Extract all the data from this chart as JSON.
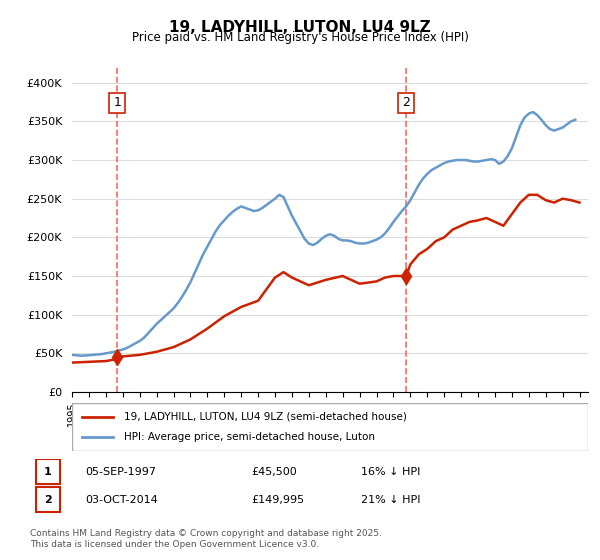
{
  "title": "19, LADYHILL, LUTON, LU4 9LZ",
  "subtitle": "Price paid vs. HM Land Registry's House Price Index (HPI)",
  "ylabel_ticks": [
    "£0",
    "£50K",
    "£100K",
    "£150K",
    "£200K",
    "£250K",
    "£300K",
    "£350K",
    "£400K"
  ],
  "ytick_values": [
    0,
    50000,
    100000,
    150000,
    200000,
    250000,
    300000,
    350000,
    400000
  ],
  "ylim": [
    0,
    420000
  ],
  "xlim_start": 1995.0,
  "xlim_end": 2025.5,
  "sale1_date": 1997.67,
  "sale1_price": 45500,
  "sale1_label": "1",
  "sale2_date": 2014.75,
  "sale2_price": 149995,
  "sale2_label": "2",
  "hpi_color": "#6699cc",
  "price_color": "#cc2200",
  "vline_color": "#ff6666",
  "background_color": "#ffffff",
  "grid_color": "#dddddd",
  "legend_entry1": "19, LADYHILL, LUTON, LU4 9LZ (semi-detached house)",
  "legend_entry2": "HPI: Average price, semi-detached house, Luton",
  "table_row1": [
    "1",
    "05-SEP-1997",
    "£45,500",
    "16% ↓ HPI"
  ],
  "table_row2": [
    "2",
    "03-OCT-2014",
    "£149,995",
    "21% ↓ HPI"
  ],
  "footer": "Contains HM Land Registry data © Crown copyright and database right 2025.\nThis data is licensed under the Open Government Licence v3.0.",
  "hpi_data": {
    "years": [
      1995.0,
      1995.25,
      1995.5,
      1995.75,
      1996.0,
      1996.25,
      1996.5,
      1996.75,
      1997.0,
      1997.25,
      1997.5,
      1997.75,
      1998.0,
      1998.25,
      1998.5,
      1998.75,
      1999.0,
      1999.25,
      1999.5,
      1999.75,
      2000.0,
      2000.25,
      2000.5,
      2000.75,
      2001.0,
      2001.25,
      2001.5,
      2001.75,
      2002.0,
      2002.25,
      2002.5,
      2002.75,
      2003.0,
      2003.25,
      2003.5,
      2003.75,
      2004.0,
      2004.25,
      2004.5,
      2004.75,
      2005.0,
      2005.25,
      2005.5,
      2005.75,
      2006.0,
      2006.25,
      2006.5,
      2006.75,
      2007.0,
      2007.25,
      2007.5,
      2007.75,
      2008.0,
      2008.25,
      2008.5,
      2008.75,
      2009.0,
      2009.25,
      2009.5,
      2009.75,
      2010.0,
      2010.25,
      2010.5,
      2010.75,
      2011.0,
      2011.25,
      2011.5,
      2011.75,
      2012.0,
      2012.25,
      2012.5,
      2012.75,
      2013.0,
      2013.25,
      2013.5,
      2013.75,
      2014.0,
      2014.25,
      2014.5,
      2014.75,
      2015.0,
      2015.25,
      2015.5,
      2015.75,
      2016.0,
      2016.25,
      2016.5,
      2016.75,
      2017.0,
      2017.25,
      2017.5,
      2017.75,
      2018.0,
      2018.25,
      2018.5,
      2018.75,
      2019.0,
      2019.25,
      2019.5,
      2019.75,
      2020.0,
      2020.25,
      2020.5,
      2020.75,
      2021.0,
      2021.25,
      2021.5,
      2021.75,
      2022.0,
      2022.25,
      2022.5,
      2022.75,
      2023.0,
      2023.25,
      2023.5,
      2023.75,
      2024.0,
      2024.25,
      2024.5,
      2024.75
    ],
    "values": [
      48000,
      47500,
      47000,
      47200,
      47500,
      48000,
      48500,
      49000,
      50000,
      51000,
      52000,
      53500,
      55000,
      57000,
      60000,
      63000,
      66000,
      70000,
      76000,
      82000,
      88000,
      93000,
      98000,
      103000,
      108000,
      115000,
      123000,
      132000,
      142000,
      154000,
      166000,
      178000,
      188000,
      198000,
      208000,
      216000,
      222000,
      228000,
      233000,
      237000,
      240000,
      238000,
      236000,
      234000,
      235000,
      238000,
      242000,
      246000,
      250000,
      255000,
      252000,
      240000,
      228000,
      218000,
      208000,
      198000,
      192000,
      190000,
      193000,
      198000,
      202000,
      204000,
      202000,
      198000,
      196000,
      196000,
      195000,
      193000,
      192000,
      192000,
      193000,
      195000,
      197000,
      200000,
      205000,
      212000,
      220000,
      227000,
      234000,
      240000,
      248000,
      258000,
      268000,
      276000,
      282000,
      287000,
      290000,
      293000,
      296000,
      298000,
      299000,
      300000,
      300000,
      300000,
      299000,
      298000,
      298000,
      299000,
      300000,
      301000,
      300000,
      295000,
      298000,
      305000,
      315000,
      330000,
      345000,
      355000,
      360000,
      362000,
      358000,
      352000,
      345000,
      340000,
      338000,
      340000,
      342000,
      346000,
      350000,
      352000
    ]
  },
  "price_data": {
    "years": [
      1995.0,
      1995.5,
      1996.0,
      1996.5,
      1997.0,
      1997.5,
      1997.67,
      1998.0,
      1999.0,
      2000.0,
      2001.0,
      2002.0,
      2003.0,
      2004.0,
      2005.0,
      2006.0,
      2007.0,
      2007.5,
      2008.0,
      2009.0,
      2010.0,
      2011.0,
      2012.0,
      2013.0,
      2013.5,
      2014.0,
      2014.75,
      2015.0,
      2015.5,
      2016.0,
      2016.5,
      2017.0,
      2017.5,
      2018.0,
      2018.5,
      2019.0,
      2019.5,
      2020.0,
      2020.5,
      2021.0,
      2021.5,
      2022.0,
      2022.5,
      2023.0,
      2023.5,
      2024.0,
      2024.5,
      2025.0
    ],
    "values": [
      38000,
      38500,
      39000,
      39500,
      40000,
      42000,
      45500,
      46000,
      48000,
      52000,
      58000,
      68000,
      82000,
      98000,
      110000,
      118000,
      148000,
      155000,
      148000,
      138000,
      145000,
      150000,
      140000,
      143000,
      148000,
      150000,
      149995,
      165000,
      178000,
      185000,
      195000,
      200000,
      210000,
      215000,
      220000,
      222000,
      225000,
      220000,
      215000,
      230000,
      245000,
      255000,
      255000,
      248000,
      245000,
      250000,
      248000,
      245000
    ]
  }
}
